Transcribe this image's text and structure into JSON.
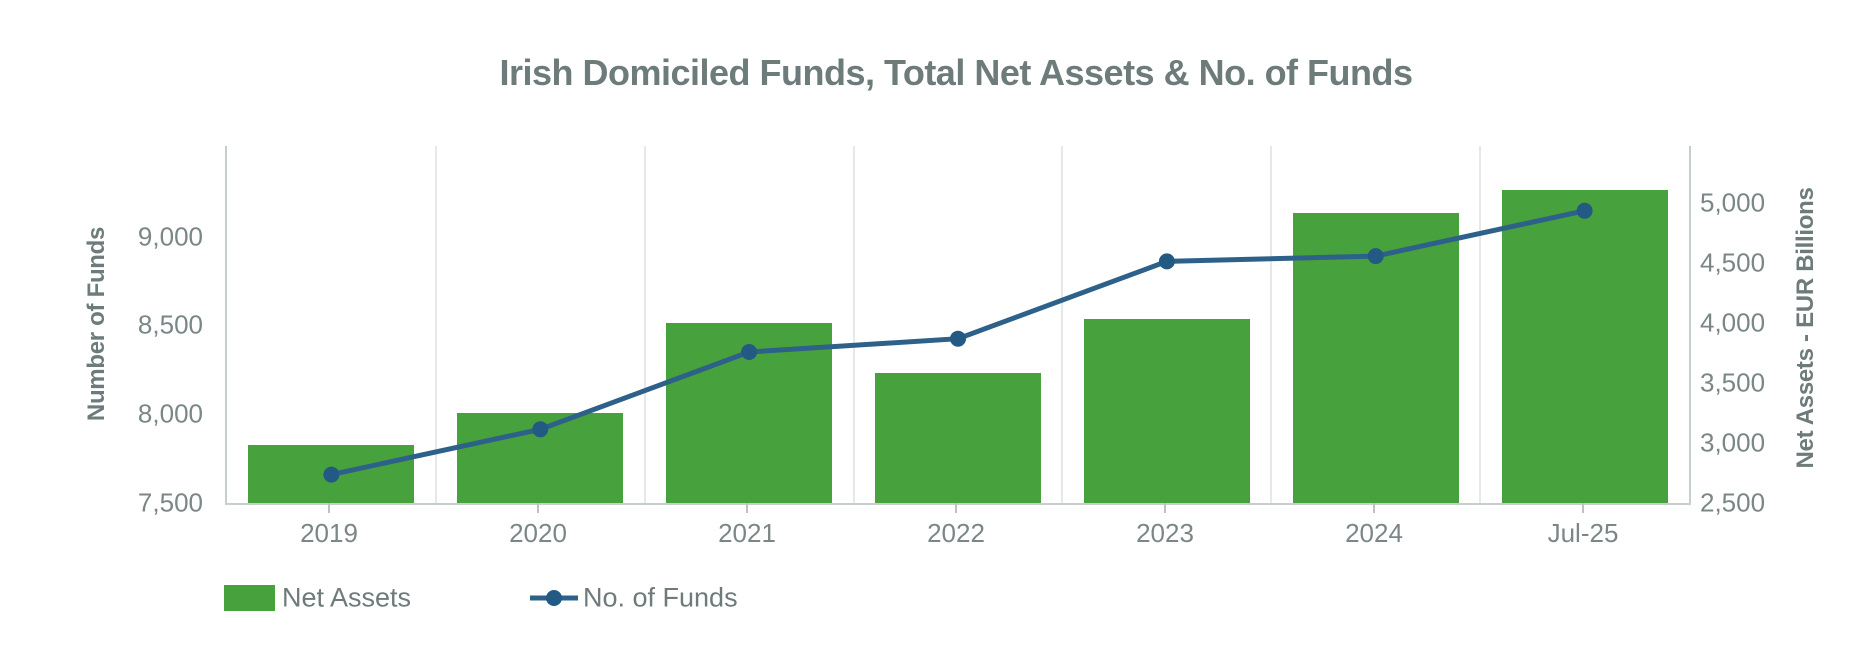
{
  "title": "Irish Domiciled Funds, Total Net Assets & No. of Funds",
  "legend": {
    "net_assets_label": "Net Assets",
    "no_of_funds_label": "No. of Funds"
  },
  "colors": {
    "bar_green": "#47a23d",
    "line_blue": "#2e6189",
    "marker_blue": "#235a84",
    "title_gray": "#6e7b7b",
    "tick_gray": "#7b8787",
    "grid_gray": "#e7e9e9",
    "axis_gray": "#c8cdcd"
  },
  "chart_data": {
    "type": "bar",
    "subtype": "combo-bar-line-dual-axis",
    "title": "Irish Domiciled Funds, Total Net Assets & No. of Funds",
    "categories": [
      "2019",
      "2020",
      "2021",
      "2022",
      "2023",
      "2024",
      "Jul-25"
    ],
    "series": [
      {
        "name": "Net Assets",
        "type": "bar",
        "axis": "right",
        "color": "#47a23d",
        "values": [
          2980,
          3250,
          4000,
          3580,
          4030,
          4920,
          5110
        ]
      },
      {
        "name": "No. of Funds",
        "type": "line",
        "axis": "left",
        "color": "#2e6189",
        "values": [
          7660,
          7915,
          8350,
          8425,
          8860,
          8890,
          9145
        ]
      }
    ],
    "xlabel": "",
    "ylabel_left": "Number of Funds",
    "ylabel_right": "Net Assets - EUR Billions",
    "ylim_left": [
      7500,
      9510
    ],
    "ylim_right": [
      2500,
      5475
    ],
    "yticks_left": [
      {
        "value": 7500,
        "label": "7,500"
      },
      {
        "value": 8000,
        "label": "8,000"
      },
      {
        "value": 8500,
        "label": "8,500"
      },
      {
        "value": 9000,
        "label": "9,000"
      }
    ],
    "yticks_right": [
      {
        "value": 2500,
        "label": "2,500"
      },
      {
        "value": 3000,
        "label": "3,000"
      },
      {
        "value": 3500,
        "label": "3,500"
      },
      {
        "value": 4000,
        "label": "4,000"
      },
      {
        "value": 4500,
        "label": "4,500"
      },
      {
        "value": 5000,
        "label": "5,000"
      }
    ],
    "grid": "vertical-category-separators",
    "legend_position": "bottom-left"
  }
}
